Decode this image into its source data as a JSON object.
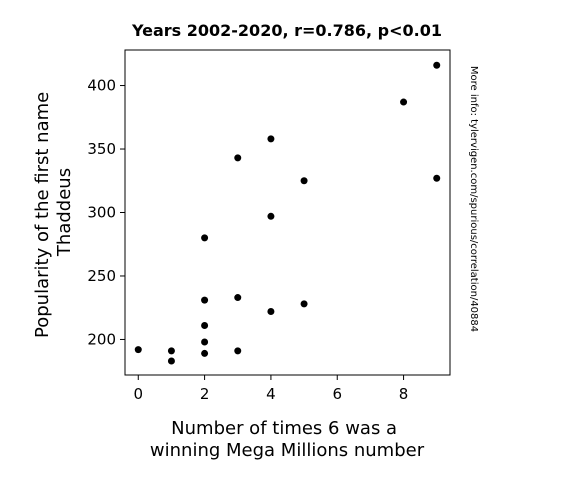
{
  "chart_data": {
    "type": "scatter",
    "title": "Years 2002-2020, r=0.786, p<0.01",
    "xlabel_lines": [
      "Number of times 6 was a",
      "winning Mega Millions number"
    ],
    "ylabel_lines": [
      "Popularity of the first name",
      "Thaddeus"
    ],
    "xlim": [
      -0.4,
      9.4
    ],
    "ylim": [
      172,
      428
    ],
    "xticks": [
      0,
      2,
      4,
      6,
      8
    ],
    "yticks": [
      200,
      250,
      300,
      350,
      400
    ],
    "grid": false,
    "point_color": "#000000",
    "points": [
      {
        "x": 0,
        "y": 192
      },
      {
        "x": 1,
        "y": 191
      },
      {
        "x": 1,
        "y": 183
      },
      {
        "x": 2,
        "y": 280
      },
      {
        "x": 2,
        "y": 231
      },
      {
        "x": 2,
        "y": 211
      },
      {
        "x": 2,
        "y": 198
      },
      {
        "x": 2,
        "y": 189
      },
      {
        "x": 3,
        "y": 343
      },
      {
        "x": 3,
        "y": 233
      },
      {
        "x": 3,
        "y": 191
      },
      {
        "x": 4,
        "y": 358
      },
      {
        "x": 4,
        "y": 297
      },
      {
        "x": 4,
        "y": 222
      },
      {
        "x": 5,
        "y": 325
      },
      {
        "x": 5,
        "y": 228
      },
      {
        "x": 8,
        "y": 387
      },
      {
        "x": 9,
        "y": 416
      },
      {
        "x": 9,
        "y": 327
      }
    ]
  },
  "watermark": "More info: tylervigen.com/spurious/correlation/40884",
  "watermark_color": "#aaaaaa"
}
